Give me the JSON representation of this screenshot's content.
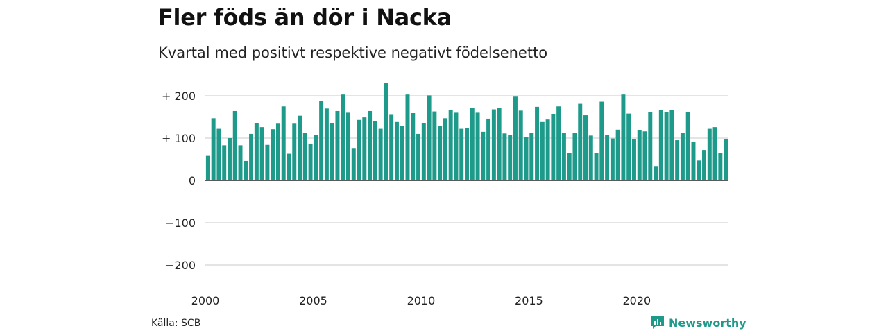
{
  "title": "Fler föds än dör i Nacka",
  "subtitle": "Kvartal med positivt respektive negativt födelsenetto",
  "source": "Källa: SCB",
  "brand": "Newsworthy",
  "colors": {
    "bar": "#1e9a8b",
    "grid": "#dcdcdc",
    "axis": "#222222"
  },
  "chart_data": {
    "type": "bar",
    "title": "Fler föds än dör i Nacka",
    "subtitle": "Kvartal med positivt respektive negativt födelsenetto",
    "xlabel": "",
    "ylabel": "",
    "ylim": [
      -200,
      200
    ],
    "grid": true,
    "y_ticks": [
      {
        "value": 200,
        "label": "+ 200"
      },
      {
        "value": 100,
        "label": "+ 100"
      },
      {
        "value": 0,
        "label": "0"
      },
      {
        "value": -100,
        "label": "−100"
      },
      {
        "value": -200,
        "label": "−200"
      }
    ],
    "x_ticks": [
      {
        "year": 2000,
        "label": "2000"
      },
      {
        "year": 2005,
        "label": "2005"
      },
      {
        "year": 2010,
        "label": "2010"
      },
      {
        "year": 2015,
        "label": "2015"
      },
      {
        "year": 2020,
        "label": "2020"
      }
    ],
    "start": "2000 Q1",
    "values": [
      58,
      147,
      122,
      83,
      100,
      164,
      83,
      46,
      110,
      136,
      126,
      84,
      121,
      134,
      175,
      63,
      134,
      153,
      113,
      87,
      108,
      188,
      170,
      136,
      164,
      203,
      160,
      75,
      143,
      149,
      164,
      140,
      122,
      231,
      155,
      138,
      128,
      203,
      159,
      110,
      136,
      201,
      163,
      129,
      147,
      166,
      160,
      122,
      123,
      172,
      160,
      115,
      146,
      168,
      172,
      111,
      108,
      198,
      165,
      103,
      112,
      174,
      138,
      144,
      156,
      175,
      112,
      65,
      112,
      181,
      154,
      106,
      64,
      186,
      108,
      99,
      120,
      203,
      158,
      97,
      119,
      116,
      161,
      34,
      166,
      162,
      167,
      95,
      113,
      161,
      91,
      47,
      72,
      122,
      126,
      64,
      98
    ]
  }
}
